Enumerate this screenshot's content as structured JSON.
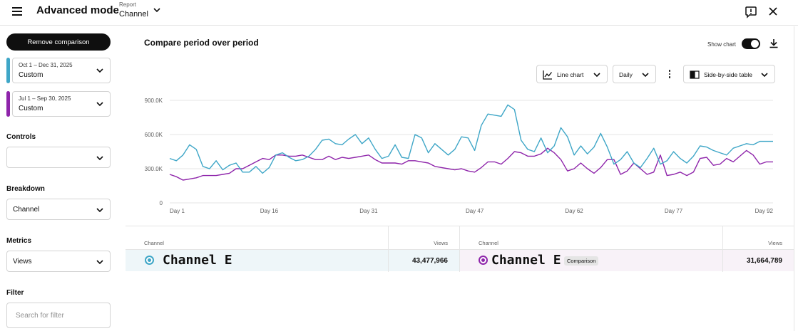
{
  "header": {
    "app_title": "Advanced mode",
    "report_label": "Report",
    "report_value": "Channel",
    "icons": [
      "menu-icon",
      "chevron-down-icon",
      "feedback-icon",
      "close-icon"
    ]
  },
  "sidebar": {
    "remove_comparison": "Remove comparison",
    "periods": [
      {
        "range": "Oct 1 – Dec 31, 2025",
        "type": "Custom",
        "color": "#3ea6c7"
      },
      {
        "range": "Jul 1 – Sep 30, 2025",
        "type": "Custom",
        "color": "#8e24aa"
      }
    ],
    "controls_label": "Controls",
    "controls_value": "",
    "breakdown_label": "Breakdown",
    "breakdown_value": "Channel",
    "metrics_label": "Metrics",
    "metrics_value": "Views",
    "filter_label": "Filter",
    "filter_placeholder": "Search for filter"
  },
  "main": {
    "title": "Compare period over period",
    "show_chart_label": "Show chart",
    "show_chart_on": true,
    "chart_type_label": "Line chart",
    "granularity_label": "Daily",
    "table_mode_label": "Side-by-side table"
  },
  "chart_data": {
    "type": "line",
    "x_ticks": [
      "Day 1",
      "Day 16",
      "Day 31",
      "Day 47",
      "Day 62",
      "Day 77",
      "Day 92"
    ],
    "y_ticks": [
      "0",
      "300.0K",
      "600.0K",
      "900.0K"
    ],
    "ylim": [
      0,
      900000
    ],
    "xlim": [
      1,
      92
    ],
    "grid": true,
    "series": [
      {
        "color": "#3ea6c7",
        "values": [
          390000,
          370000,
          420000,
          510000,
          470000,
          320000,
          300000,
          370000,
          290000,
          330000,
          350000,
          270000,
          270000,
          320000,
          260000,
          310000,
          420000,
          440000,
          400000,
          370000,
          380000,
          410000,
          470000,
          550000,
          560000,
          520000,
          510000,
          560000,
          600000,
          520000,
          570000,
          470000,
          390000,
          410000,
          510000,
          400000,
          390000,
          600000,
          570000,
          440000,
          520000,
          470000,
          420000,
          470000,
          580000,
          570000,
          460000,
          680000,
          780000,
          770000,
          760000,
          860000,
          820000,
          550000,
          470000,
          450000,
          570000,
          440000,
          500000,
          660000,
          580000,
          420000,
          500000,
          430000,
          490000,
          610000,
          490000,
          340000,
          380000,
          450000,
          350000,
          310000,
          390000,
          480000,
          340000,
          370000,
          450000,
          390000,
          350000,
          410000,
          500000,
          490000,
          460000,
          440000,
          420000,
          480000,
          500000,
          520000,
          510000,
          540000,
          540000,
          540000
        ]
      },
      {
        "color": "#8e24aa",
        "values": [
          250000,
          230000,
          200000,
          210000,
          220000,
          240000,
          240000,
          240000,
          250000,
          260000,
          300000,
          300000,
          330000,
          360000,
          390000,
          380000,
          420000,
          420000,
          410000,
          410000,
          420000,
          400000,
          380000,
          380000,
          410000,
          380000,
          400000,
          390000,
          400000,
          410000,
          420000,
          380000,
          350000,
          350000,
          350000,
          340000,
          370000,
          370000,
          360000,
          350000,
          320000,
          310000,
          300000,
          290000,
          300000,
          280000,
          270000,
          310000,
          360000,
          360000,
          340000,
          390000,
          450000,
          440000,
          410000,
          410000,
          430000,
          480000,
          440000,
          380000,
          280000,
          300000,
          350000,
          300000,
          260000,
          310000,
          380000,
          380000,
          250000,
          280000,
          350000,
          300000,
          250000,
          270000,
          420000,
          240000,
          250000,
          270000,
          240000,
          270000,
          390000,
          400000,
          330000,
          340000,
          390000,
          360000,
          410000,
          460000,
          420000,
          340000,
          360000,
          360000
        ]
      }
    ]
  },
  "table": {
    "left": {
      "col_channel": "Channel",
      "col_views": "Views",
      "channel": "Channel E",
      "views": "43,477,966"
    },
    "right": {
      "col_channel": "Channel",
      "col_views": "Views",
      "channel": "Channel E",
      "badge": "Comparison",
      "views": "31,664,789"
    }
  }
}
